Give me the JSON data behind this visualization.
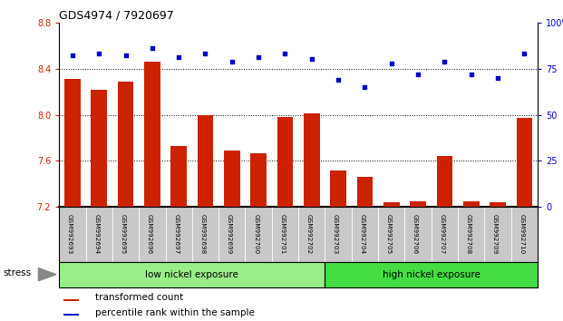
{
  "title": "GDS4974 / 7920697",
  "samples": [
    "GSM992693",
    "GSM992694",
    "GSM992695",
    "GSM992696",
    "GSM992697",
    "GSM992698",
    "GSM992699",
    "GSM992700",
    "GSM992701",
    "GSM992702",
    "GSM992703",
    "GSM992704",
    "GSM992705",
    "GSM992706",
    "GSM992707",
    "GSM992708",
    "GSM992709",
    "GSM992710"
  ],
  "transformed_count": [
    8.31,
    8.22,
    8.29,
    8.46,
    7.73,
    8.0,
    7.69,
    7.67,
    7.98,
    8.01,
    7.52,
    7.46,
    7.24,
    7.25,
    7.64,
    7.25,
    7.24,
    7.97
  ],
  "percentile_rank": [
    82,
    83,
    82,
    86,
    81,
    83,
    79,
    81,
    83,
    80,
    69,
    65,
    78,
    72,
    79,
    72,
    70,
    83
  ],
  "ylim_left": [
    7.2,
    8.8
  ],
  "ylim_right": [
    0,
    100
  ],
  "yticks_left": [
    7.2,
    7.6,
    8.0,
    8.4,
    8.8
  ],
  "yticks_right": [
    0,
    25,
    50,
    75,
    100
  ],
  "bar_color": "#cc2200",
  "dot_color": "#0000cc",
  "group1_label": "low nickel exposure",
  "group1_count": 10,
  "group2_label": "high nickel exposure",
  "group2_count": 8,
  "group_label": "stress",
  "group1_color": "#99ee88",
  "group2_color": "#44dd44",
  "legend_bar_label": "transformed count",
  "legend_dot_label": "percentile rank within the sample",
  "background_color": "#ffffff",
  "tick_color_left": "#cc2200",
  "tick_color_right": "#0000cc",
  "xtick_bg": "#c8c8c8"
}
